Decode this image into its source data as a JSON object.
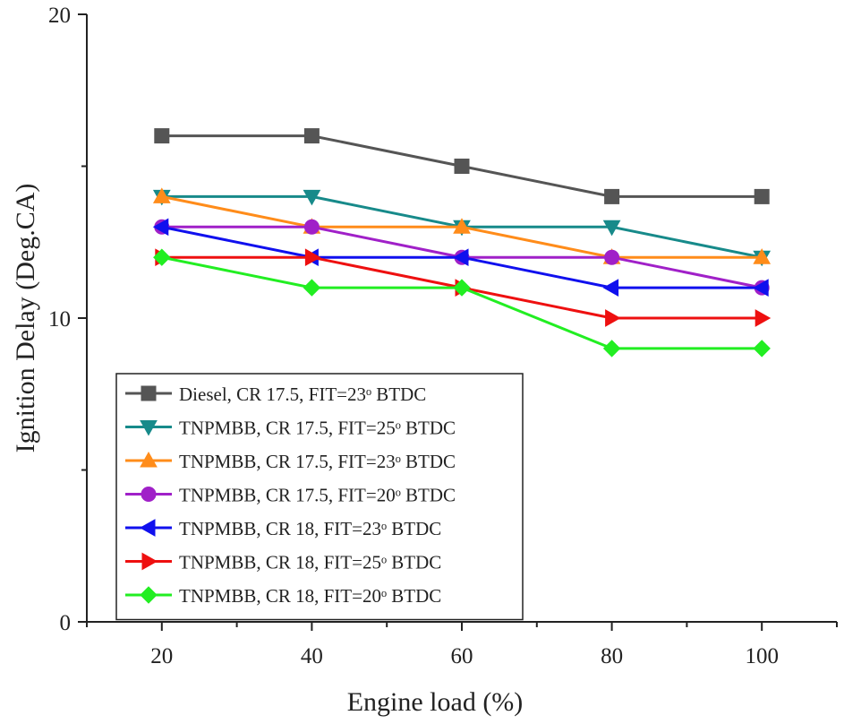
{
  "chart_data": {
    "type": "line",
    "title": "",
    "xlabel": "Engine load (%)",
    "ylabel": "Ignition Delay (Deg.CA)",
    "x": [
      20,
      40,
      60,
      80,
      100
    ],
    "x_ticks": [
      "20",
      "40",
      "60",
      "80",
      "100"
    ],
    "y_ticks": [
      "0",
      "10",
      "20"
    ],
    "xlim": [
      10,
      110
    ],
    "ylim": [
      0,
      20
    ],
    "grid": false,
    "legend_position": "bottom-left",
    "series": [
      {
        "name": "Diesel, CR 17.5, FIT=23ᵒ BTDC",
        "marker": "square",
        "color": "#555555",
        "values": [
          16,
          16,
          15,
          14,
          14
        ]
      },
      {
        "name": "TNPMBB, CR 17.5, FIT=25ᵒ BTDC",
        "marker": "triangle-down",
        "color": "#178a8a",
        "values": [
          14,
          14,
          13,
          13,
          12
        ]
      },
      {
        "name": "TNPMBB, CR 17.5, FIT=23ᵒ BTDC",
        "marker": "triangle-up",
        "color": "#ff8c1a",
        "values": [
          14,
          13,
          13,
          12,
          12
        ]
      },
      {
        "name": "TNPMBB, CR 17.5, FIT=20ᵒ BTDC",
        "marker": "circle",
        "color": "#a020c8",
        "values": [
          13,
          13,
          12,
          12,
          11
        ]
      },
      {
        "name": "TNPMBB, CR 18, FIT=23ᵒ BTDC",
        "marker": "triangle-left",
        "color": "#1010ee",
        "values": [
          13,
          12,
          12,
          11,
          11
        ]
      },
      {
        "name": "TNPMBB, CR 18, FIT=25ᵒ BTDC",
        "marker": "triangle-right",
        "color": "#ee1010",
        "values": [
          12,
          12,
          11,
          10,
          10
        ]
      },
      {
        "name": "TNPMBB, CR 18, FIT=20ᵒ BTDC",
        "marker": "diamond",
        "color": "#22ee22",
        "values": [
          12,
          11,
          11,
          9,
          9
        ]
      }
    ]
  }
}
